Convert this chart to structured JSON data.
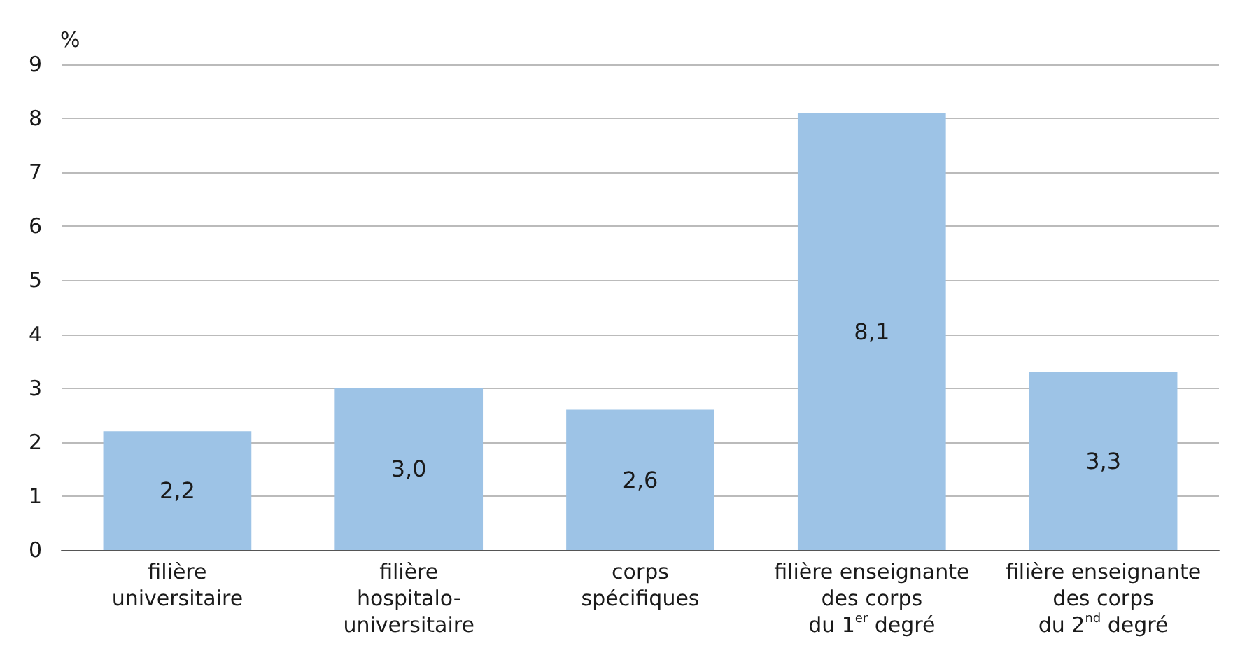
{
  "chart_data": {
    "type": "bar",
    "ylabel": "%",
    "categories": [
      "filière\nuniversitaire",
      "filière\nhospitalo-\nuniversitaire",
      "corps\nspécifiques",
      "filière enseignante\ndes corps\ndu 1$^{er}$ degré",
      "filière enseignante\ndes corps\ndu 2$^{nd}$ degré"
    ],
    "values": [
      2.2,
      3.0,
      2.6,
      8.1,
      3.3
    ],
    "value_labels": [
      "2,2",
      "3,0",
      "2,6",
      "8,1",
      "3,3"
    ],
    "color": "#9dc3e6",
    "ylim": [
      0,
      9
    ],
    "yticks": [
      0,
      1,
      2,
      3,
      4,
      5,
      6,
      7,
      8,
      9
    ],
    "grid": "y"
  }
}
